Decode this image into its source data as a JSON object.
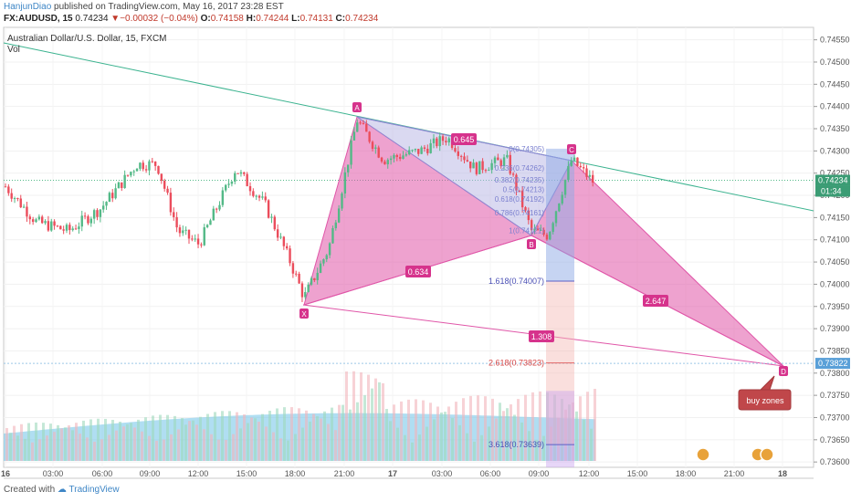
{
  "header": {
    "author": "HanjunDiao",
    "published_text": "published on TradingView.com, May 16, 2017 23:28 EST",
    "symbol": "FX:AUDUSD, 15",
    "last": "0.74234",
    "change": "▼−0.00032 (−0.04%)",
    "ohlc_o": "0.74158",
    "ohlc_h": "0.74244",
    "ohlc_l": "0.74131",
    "ohlc_c": "0.74234"
  },
  "legend": {
    "title": "Australian Dollar/U.S. Dollar, 15, FXCM",
    "volume": "Vol"
  },
  "footer": {
    "created": "Created with",
    "brand": "TradingView"
  },
  "price_badges": {
    "last": "0.74234",
    "countdown": "01:34",
    "target": "0.73822"
  },
  "chart_data": {
    "type": "candlestick",
    "title": "Australian Dollar/U.S. Dollar, 15, FXCM",
    "ylim": [
      0.73588,
      0.74578
    ],
    "y_ticks": [
      "0.74550",
      "0.74500",
      "0.74450",
      "0.74400",
      "0.74350",
      "0.74300",
      "0.74250",
      "0.74200",
      "0.74150",
      "0.74100",
      "0.74050",
      "0.74000",
      "0.73950",
      "0.73900",
      "0.73850",
      "0.73800",
      "0.73750",
      "0.73700",
      "0.73650",
      "0.73600"
    ],
    "x_ticks": [
      "16",
      "03:00",
      "06:00",
      "09:00",
      "12:00",
      "15:00",
      "18:00",
      "21:00",
      "17",
      "03:00",
      "06:00",
      "09:00",
      "12:00",
      "15:00",
      "18:00",
      "21:00",
      "18"
    ],
    "colors": {
      "up": "#53b987",
      "down": "#eb4d5c",
      "pattern": "#e056a8",
      "trendline": "#3bb38f"
    },
    "harmonic_pattern": {
      "points": [
        {
          "label": "X",
          "price": 0.7396
        },
        {
          "label": "A",
          "price": 0.74385
        },
        {
          "label": "B",
          "price": 0.7411
        },
        {
          "label": "C",
          "price": 0.74285
        },
        {
          "label": "D",
          "price": 0.73822
        }
      ],
      "ratios": [
        "0.645",
        "0.634",
        "2.647",
        "1.308"
      ]
    },
    "fib_levels": [
      {
        "label": "1.618(0.74007)",
        "price": 0.74007
      },
      {
        "label": "2.618(0.73823)",
        "price": 0.73823
      },
      {
        "label": "3.618(0.73639)",
        "price": 0.73639
      },
      {
        "label": "0(0.74305)",
        "price": 0.74305
      },
      {
        "label": "0.236(0.74262)",
        "price": 0.74262
      },
      {
        "label": "0.382(0.74235)",
        "price": 0.74235
      },
      {
        "label": "0.5(0.74213)",
        "price": 0.74213
      },
      {
        "label": "0.618(0.74192)",
        "price": 0.74192
      },
      {
        "label": "0.786(0.74161)",
        "price": 0.74161
      },
      {
        "label": "1(0.74121)",
        "price": 0.74121
      }
    ],
    "annotation": "buy zones",
    "last_price": 0.74234,
    "target_price": 0.73822
  }
}
